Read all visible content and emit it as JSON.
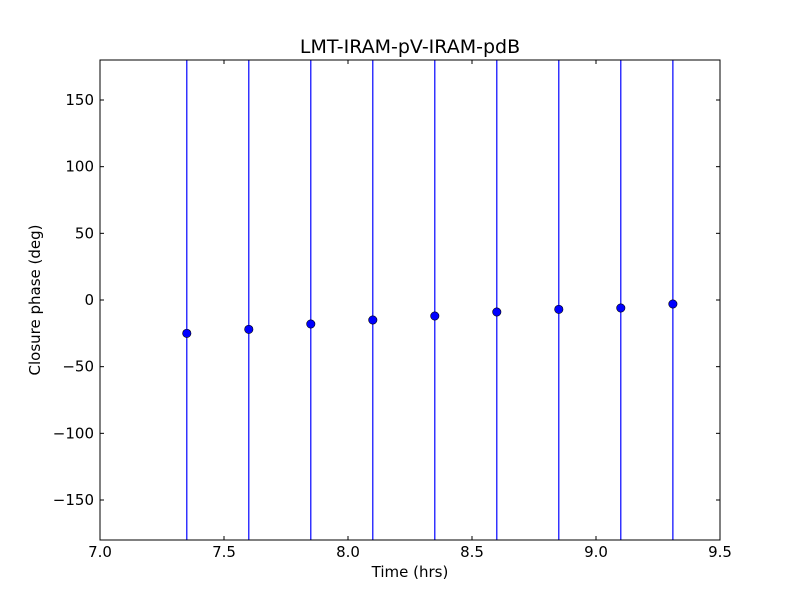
{
  "chart_data": {
    "type": "scatter",
    "title": "LMT-IRAM-pV-IRAM-pdB",
    "xlabel": "Time (hrs)",
    "ylabel": "Closure phase (deg)",
    "xlim": [
      7.0,
      9.5
    ],
    "ylim": [
      -180,
      180
    ],
    "xticks": [
      7.0,
      7.5,
      8.0,
      8.5,
      9.0,
      9.5
    ],
    "xtick_labels": [
      "7.0",
      "7.5",
      "8.0",
      "8.5",
      "9.0",
      "9.5"
    ],
    "yticks": [
      -150,
      -100,
      -50,
      0,
      50,
      100,
      150
    ],
    "ytick_labels": [
      "−150",
      "−100",
      "−50",
      "0",
      "50",
      "100",
      "150"
    ],
    "grid": false,
    "series": [
      {
        "marker": "circle",
        "color": "#0000ff",
        "errorbar_color": "#0000ff",
        "points": [
          {
            "x": 7.35,
            "y": -25,
            "yerr_low": -180,
            "yerr_high": 180
          },
          {
            "x": 7.6,
            "y": -22,
            "yerr_low": -180,
            "yerr_high": 180
          },
          {
            "x": 7.85,
            "y": -18,
            "yerr_low": -180,
            "yerr_high": 180
          },
          {
            "x": 8.1,
            "y": -15,
            "yerr_low": -180,
            "yerr_high": 180
          },
          {
            "x": 8.35,
            "y": -12,
            "yerr_low": -180,
            "yerr_high": 180
          },
          {
            "x": 8.6,
            "y": -9,
            "yerr_low": -180,
            "yerr_high": 180
          },
          {
            "x": 8.85,
            "y": -7,
            "yerr_low": -180,
            "yerr_high": 180
          },
          {
            "x": 9.1,
            "y": -6,
            "yerr_low": -180,
            "yerr_high": 180
          },
          {
            "x": 9.31,
            "y": -3,
            "yerr_low": -180,
            "yerr_high": 180
          }
        ]
      }
    ]
  }
}
